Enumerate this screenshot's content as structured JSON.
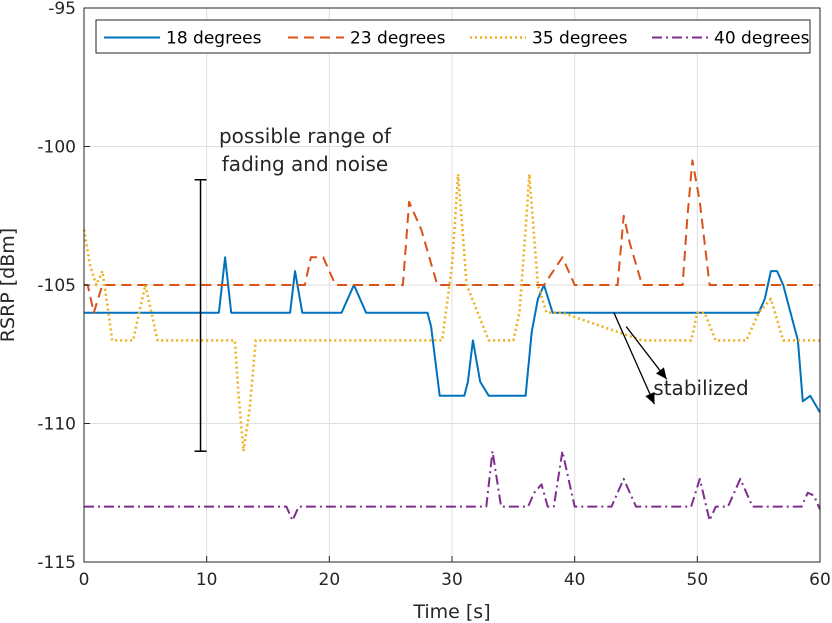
{
  "chart_data": {
    "type": "line",
    "title": "",
    "xlabel": "Time [s]",
    "ylabel": "RSRP [dBm]",
    "xlim": [
      0,
      60
    ],
    "ylim": [
      -115,
      -95
    ],
    "xticks": [
      0,
      10,
      20,
      30,
      40,
      50,
      60
    ],
    "yticks": [
      -115,
      -110,
      -105,
      -100,
      -95
    ],
    "grid": true,
    "legend_position": "top",
    "series": [
      {
        "name": "18 degrees",
        "color": "#0072BD",
        "style": "solid",
        "points": [
          [
            0,
            -106
          ],
          [
            10.5,
            -106
          ],
          [
            11,
            -106
          ],
          [
            11.5,
            -104
          ],
          [
            12,
            -106
          ],
          [
            16,
            -106
          ],
          [
            16.8,
            -106
          ],
          [
            17.2,
            -104.5
          ],
          [
            17.8,
            -106
          ],
          [
            21,
            -106
          ],
          [
            22,
            -105
          ],
          [
            23,
            -106
          ],
          [
            28,
            -106
          ],
          [
            28.3,
            -106.5
          ],
          [
            29,
            -109
          ],
          [
            31,
            -109
          ],
          [
            31.3,
            -108.5
          ],
          [
            31.7,
            -107
          ],
          [
            32.3,
            -108.5
          ],
          [
            33,
            -109
          ],
          [
            36,
            -109
          ],
          [
            36.5,
            -106.7
          ],
          [
            37,
            -105.5
          ],
          [
            37.5,
            -105
          ],
          [
            38.2,
            -106
          ],
          [
            55,
            -106
          ],
          [
            55.5,
            -105.5
          ],
          [
            56,
            -104.5
          ],
          [
            56.5,
            -104.5
          ],
          [
            57,
            -105
          ],
          [
            58.2,
            -107
          ],
          [
            58.6,
            -109.2
          ],
          [
            59.2,
            -109
          ],
          [
            59.6,
            -109.3
          ],
          [
            60,
            -109.6
          ]
        ]
      },
      {
        "name": "23 degrees",
        "color": "#D95319",
        "style": "dashed",
        "points": [
          [
            0,
            -105
          ],
          [
            0.3,
            -105
          ],
          [
            0.8,
            -106
          ],
          [
            1.5,
            -105
          ],
          [
            17.5,
            -105
          ],
          [
            18,
            -105
          ],
          [
            18.5,
            -104
          ],
          [
            19.5,
            -104
          ],
          [
            20.5,
            -105
          ],
          [
            26,
            -105
          ],
          [
            26.5,
            -102
          ],
          [
            27.5,
            -103
          ],
          [
            28.8,
            -105
          ],
          [
            37.5,
            -105
          ],
          [
            39,
            -104
          ],
          [
            40,
            -105
          ],
          [
            43.5,
            -105
          ],
          [
            44,
            -102.5
          ],
          [
            44.5,
            -103.5
          ],
          [
            45.5,
            -105
          ],
          [
            48.8,
            -105
          ],
          [
            49.2,
            -102.5
          ],
          [
            49.6,
            -100.5
          ],
          [
            50.2,
            -102
          ],
          [
            51,
            -105
          ],
          [
            60,
            -105
          ]
        ]
      },
      {
        "name": "35 degrees",
        "color": "#EDB120",
        "style": "dotted",
        "points": [
          [
            0,
            -103
          ],
          [
            0.5,
            -104.3
          ],
          [
            1,
            -105
          ],
          [
            1.5,
            -104.5
          ],
          [
            2,
            -106
          ],
          [
            2.3,
            -107
          ],
          [
            4,
            -107
          ],
          [
            5,
            -105
          ],
          [
            6,
            -107
          ],
          [
            12.3,
            -107
          ],
          [
            12.6,
            -109
          ],
          [
            13,
            -111
          ],
          [
            13.5,
            -109.5
          ],
          [
            14,
            -107
          ],
          [
            29.2,
            -107
          ],
          [
            30,
            -104.3
          ],
          [
            30.5,
            -101
          ],
          [
            31.2,
            -105
          ],
          [
            33,
            -107
          ],
          [
            35,
            -107
          ],
          [
            35.5,
            -106
          ],
          [
            36,
            -103
          ],
          [
            36.3,
            -101
          ],
          [
            37,
            -105
          ],
          [
            37.7,
            -106
          ],
          [
            38.5,
            -106
          ],
          [
            39,
            -106
          ],
          [
            45.5,
            -107
          ],
          [
            47,
            -107
          ],
          [
            49.5,
            -107
          ],
          [
            50,
            -106
          ],
          [
            50.6,
            -106
          ],
          [
            51.5,
            -107
          ],
          [
            54,
            -107
          ],
          [
            55,
            -106
          ],
          [
            56,
            -105.5
          ],
          [
            57,
            -107
          ],
          [
            60,
            -107
          ]
        ]
      },
      {
        "name": "40 degrees",
        "color": "#7E2F8E",
        "style": "dashdot",
        "points": [
          [
            0,
            -113
          ],
          [
            16.5,
            -113
          ],
          [
            17,
            -113.5
          ],
          [
            17.5,
            -113
          ],
          [
            32.8,
            -113
          ],
          [
            33.3,
            -111
          ],
          [
            34,
            -113
          ],
          [
            36.2,
            -113
          ],
          [
            36.7,
            -112.5
          ],
          [
            37.3,
            -112.2
          ],
          [
            37.8,
            -113
          ],
          [
            38.3,
            -113
          ],
          [
            39,
            -111
          ],
          [
            39.5,
            -112
          ],
          [
            40,
            -113
          ],
          [
            43,
            -113
          ],
          [
            44,
            -112
          ],
          [
            45,
            -113
          ],
          [
            49.5,
            -113
          ],
          [
            50.2,
            -112
          ],
          [
            51,
            -113.5
          ],
          [
            51.5,
            -113
          ],
          [
            52.5,
            -113
          ],
          [
            53.5,
            -112
          ],
          [
            54.5,
            -113
          ],
          [
            58.5,
            -113
          ],
          [
            59,
            -112.5
          ],
          [
            59.5,
            -112.6
          ],
          [
            60,
            -113.1
          ]
        ]
      }
    ],
    "annotations": {
      "range_label": [
        "possible range of",
        "fading and noise"
      ],
      "range_bar": {
        "x": 9.5,
        "y_top": -101.2,
        "y_bottom": -111
      },
      "stabilized_label": "stabilized",
      "stabilized_arrows": [
        {
          "from": [
            43.2,
            -106
          ],
          "to": [
            46.5,
            -109.3
          ]
        },
        {
          "from": [
            44.2,
            -106.5
          ],
          "to": [
            47.5,
            -108.4
          ]
        }
      ]
    }
  }
}
